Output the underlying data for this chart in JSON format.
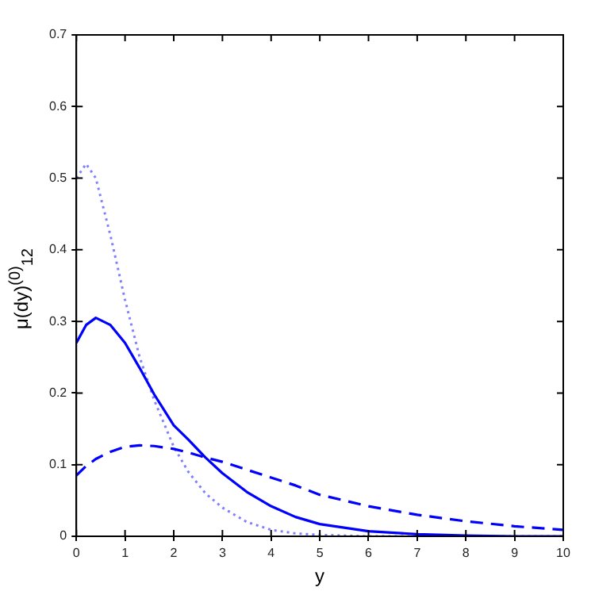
{
  "chart_data": {
    "type": "line",
    "xlabel": "y",
    "ylabel": "μ(dy)$^{(0)}$$_{12}$",
    "x": [
      0,
      0.2,
      0.4,
      0.7,
      1,
      1.3,
      1.6,
      2,
      2.3,
      2.65,
      3,
      3.5,
      4,
      4.5,
      5,
      6,
      7,
      8,
      9,
      10
    ],
    "series": [
      {
        "color": "#0000ff",
        "line_style": "solid",
        "values": [
          0.27,
          0.295,
          0.305,
          0.295,
          0.27,
          0.235,
          0.198,
          0.155,
          0.135,
          0.11,
          0.088,
          0.062,
          0.042,
          0.027,
          0.017,
          0.007,
          0.003,
          0.001,
          0,
          0
        ]
      },
      {
        "color": "#0000ff",
        "line_style": "dashed",
        "values": [
          0.085,
          0.098,
          0.108,
          0.118,
          0.125,
          0.127,
          0.126,
          0.122,
          0.117,
          0.11,
          0.104,
          0.093,
          0.082,
          0.071,
          0.058,
          0.042,
          0.03,
          0.021,
          0.014,
          0.009
        ]
      },
      {
        "color": "#8080ff",
        "line_style": "dotted",
        "values": [
          0.5,
          0.52,
          0.5,
          0.42,
          0.33,
          0.25,
          0.19,
          0.125,
          0.09,
          0.06,
          0.04,
          0.02,
          0.009,
          0.004,
          0.002,
          0,
          0,
          0,
          0,
          0
        ]
      }
    ],
    "xlim": [
      0,
      10
    ],
    "xticks": [
      0,
      1,
      2,
      3,
      4,
      5,
      6,
      7,
      8,
      9,
      10
    ],
    "ylim": [
      0,
      0.7
    ],
    "yticks": [
      0,
      0.1,
      0.2,
      0.3,
      0.4,
      0.5,
      0.6,
      0.7
    ],
    "grid": false,
    "legend": false,
    "marker": "none"
  }
}
